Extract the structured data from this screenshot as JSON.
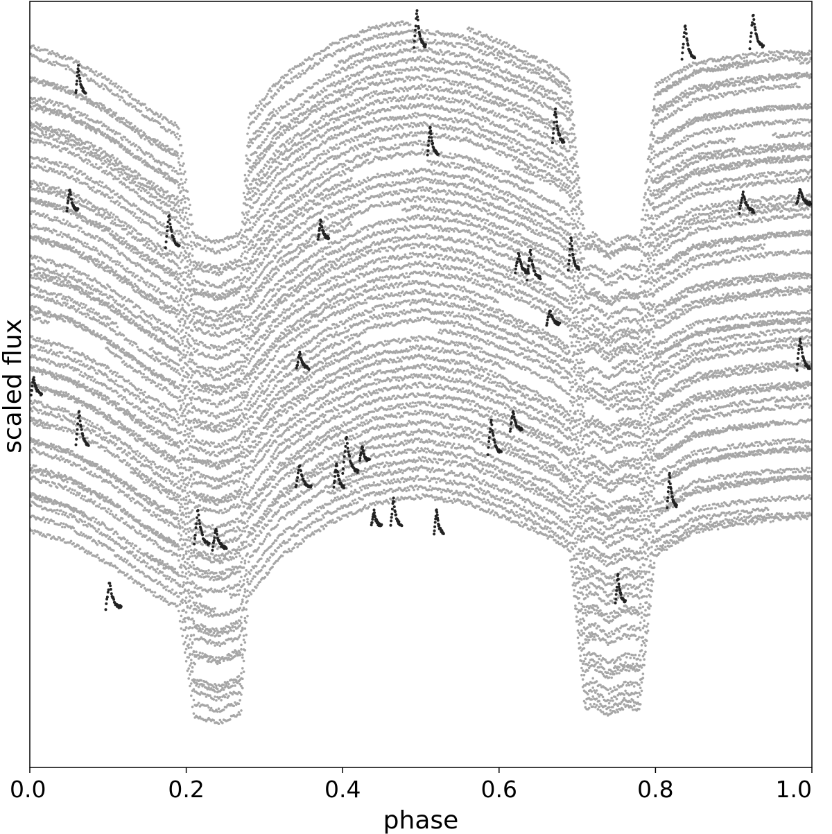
{
  "chart_data": {
    "type": "scatter",
    "title": "",
    "xlabel": "phase",
    "ylabel": "scaled flux",
    "xlim": [
      0.0,
      1.0
    ],
    "ylim": [
      0.0,
      1.0
    ],
    "x_ticks": [
      "0.0",
      "0.2",
      "0.4",
      "0.6",
      "0.8",
      "1.0"
    ],
    "x_tick_values": [
      0.0,
      0.2,
      0.4,
      0.6,
      0.8,
      1.0
    ],
    "y_ticks": [],
    "grid": false,
    "legend": "none",
    "n_curves": 52,
    "quiescent_color": "#a6a6a6",
    "flare_color": "#222222",
    "light_curve_profile": {
      "phase": [
        0.0,
        0.05,
        0.1,
        0.15,
        0.19,
        0.21,
        0.24,
        0.27,
        0.28,
        0.32,
        0.38,
        0.44,
        0.5,
        0.56,
        0.62,
        0.67,
        0.69,
        0.71,
        0.72,
        0.74,
        0.76,
        0.78,
        0.8,
        0.85,
        0.9,
        0.95,
        1.0
      ],
      "relative_flux": [
        0.84,
        0.79,
        0.7,
        0.58,
        0.5,
        0.03,
        0.0,
        0.04,
        0.55,
        0.72,
        0.86,
        0.95,
        0.98,
        0.95,
        0.87,
        0.79,
        0.74,
        0.05,
        0.07,
        0.02,
        0.06,
        0.05,
        0.72,
        0.82,
        0.85,
        0.87,
        0.88
      ]
    },
    "flares": [
      {
        "phase": 0.062,
        "flux": 0.88
      },
      {
        "phase": 0.051,
        "flux": 0.727
      },
      {
        "phase": 0.178,
        "flux": 0.68
      },
      {
        "phase": 0.005,
        "flux": 0.487
      },
      {
        "phase": 0.063,
        "flux": 0.42
      },
      {
        "phase": 0.102,
        "flux": 0.208
      },
      {
        "phase": 0.215,
        "flux": 0.29
      },
      {
        "phase": 0.238,
        "flux": 0.285
      },
      {
        "phase": 0.345,
        "flux": 0.52
      },
      {
        "phase": 0.372,
        "flux": 0.69
      },
      {
        "phase": 0.345,
        "flux": 0.365
      },
      {
        "phase": 0.392,
        "flux": 0.365
      },
      {
        "phase": 0.405,
        "flux": 0.385
      },
      {
        "phase": 0.425,
        "flux": 0.4
      },
      {
        "phase": 0.44,
        "flux": 0.315
      },
      {
        "phase": 0.465,
        "flux": 0.315
      },
      {
        "phase": 0.495,
        "flux": 0.94
      },
      {
        "phase": 0.512,
        "flux": 0.8
      },
      {
        "phase": 0.52,
        "flux": 0.305
      },
      {
        "phase": 0.59,
        "flux": 0.41
      },
      {
        "phase": 0.618,
        "flux": 0.44
      },
      {
        "phase": 0.625,
        "flux": 0.645
      },
      {
        "phase": 0.64,
        "flux": 0.638
      },
      {
        "phase": 0.665,
        "flux": 0.578
      },
      {
        "phase": 0.672,
        "flux": 0.815
      },
      {
        "phase": 0.692,
        "flux": 0.65
      },
      {
        "phase": 0.752,
        "flux": 0.215
      },
      {
        "phase": 0.818,
        "flux": 0.34
      },
      {
        "phase": 0.838,
        "flux": 0.925
      },
      {
        "phase": 0.912,
        "flux": 0.725
      },
      {
        "phase": 0.925,
        "flux": 0.94
      },
      {
        "phase": 0.985,
        "flux": 0.735
      },
      {
        "phase": 0.985,
        "flux": 0.52
      }
    ]
  }
}
